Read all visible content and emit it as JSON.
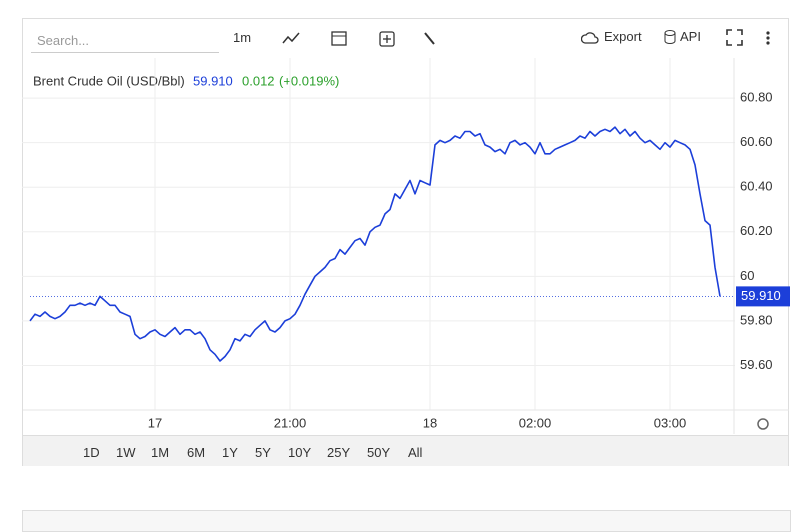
{
  "toolbar": {
    "search": "Search...",
    "interval": "1m",
    "export": "Export",
    "api": "API"
  },
  "header": {
    "title": "Brent Crude Oil (USD/Bbl)",
    "price": "59.910",
    "change": "0.012",
    "change_pct": "(+0.019%)"
  },
  "ranges": [
    "1D",
    "1W",
    "1M",
    "6M",
    "1Y",
    "5Y",
    "10Y",
    "25Y",
    "50Y",
    "All"
  ],
  "chart_data": {
    "type": "line",
    "categories": [
      null,
      null,
      null,
      null,
      null,
      null,
      null,
      null,
      null,
      null,
      null,
      null,
      null,
      null,
      null,
      null,
      null,
      null,
      null,
      null,
      null,
      null,
      null,
      null,
      null,
      "17",
      null,
      null,
      null,
      null,
      null,
      null,
      null,
      null,
      null,
      null,
      null,
      null,
      null,
      null,
      null,
      null,
      null,
      null,
      null,
      null,
      null,
      null,
      null,
      null,
      null,
      null,
      "21:00",
      null,
      null,
      null,
      null,
      null,
      null,
      null,
      null,
      null,
      null,
      null,
      null,
      null,
      null,
      null,
      null,
      null,
      null,
      null,
      null,
      null,
      null,
      null,
      null,
      null,
      null,
      null,
      "18",
      null,
      null,
      null,
      null,
      null,
      null,
      null,
      null,
      null,
      null,
      null,
      null,
      null,
      null,
      null,
      null,
      null,
      null,
      null,
      null,
      "02:00",
      null,
      null,
      null,
      null,
      null,
      null,
      null,
      null,
      null,
      null,
      null,
      null,
      null,
      null,
      null,
      null,
      null,
      null,
      null,
      null,
      null,
      null,
      null,
      null,
      null,
      null,
      "03:00",
      null,
      null,
      null,
      null,
      null,
      null,
      null,
      null,
      null,
      null
    ],
    "series": [
      {
        "name": "Brent Crude Oil (USD/Bbl)",
        "color": "#1c3fd9",
        "values": [
          59.8,
          59.83,
          59.82,
          59.84,
          59.82,
          59.81,
          59.82,
          59.84,
          59.87,
          59.87,
          59.88,
          59.87,
          59.88,
          59.87,
          59.91,
          59.89,
          59.87,
          59.87,
          59.84,
          59.83,
          59.82,
          59.74,
          59.72,
          59.73,
          59.75,
          59.76,
          59.74,
          59.73,
          59.75,
          59.77,
          59.74,
          59.76,
          59.76,
          59.74,
          59.75,
          59.72,
          59.67,
          59.65,
          59.62,
          59.64,
          59.67,
          59.72,
          59.71,
          59.74,
          59.73,
          59.76,
          59.78,
          59.8,
          59.76,
          59.75,
          59.77,
          59.8,
          59.81,
          59.83,
          59.87,
          59.92,
          59.96,
          60.0,
          60.02,
          60.04,
          60.07,
          60.08,
          60.12,
          60.1,
          60.13,
          60.16,
          60.17,
          60.14,
          60.2,
          60.22,
          60.23,
          60.28,
          60.3,
          60.37,
          60.35,
          60.39,
          60.43,
          60.37,
          60.43,
          60.42,
          60.41,
          60.59,
          60.61,
          60.6,
          60.61,
          60.63,
          60.62,
          60.65,
          60.65,
          60.63,
          60.64,
          60.59,
          60.58,
          60.56,
          60.57,
          60.55,
          60.6,
          60.61,
          60.59,
          60.6,
          60.58,
          60.55,
          60.6,
          60.55,
          60.55,
          60.57,
          60.58,
          60.59,
          60.6,
          60.61,
          60.63,
          60.62,
          60.65,
          60.63,
          60.65,
          60.66,
          60.65,
          60.67,
          60.64,
          60.66,
          60.63,
          60.65,
          60.62,
          60.6,
          60.61,
          60.59,
          60.57,
          60.6,
          60.58,
          60.61,
          60.6,
          60.59,
          60.57,
          60.5,
          60.37,
          60.25,
          60.23,
          60.04,
          59.91
        ]
      }
    ],
    "ylim": [
      59.4,
      60.98
    ],
    "yticks": [
      {
        "value": 59.6,
        "label": "59.60"
      },
      {
        "value": 59.8,
        "label": "59.80"
      },
      60,
      {
        "value": 60.2,
        "label": "60.20"
      },
      {
        "value": 60.4,
        "label": "60.40"
      },
      {
        "value": 60.6,
        "label": "60.60"
      },
      {
        "value": 60.8,
        "label": "60.80"
      }
    ],
    "grid": true
  }
}
